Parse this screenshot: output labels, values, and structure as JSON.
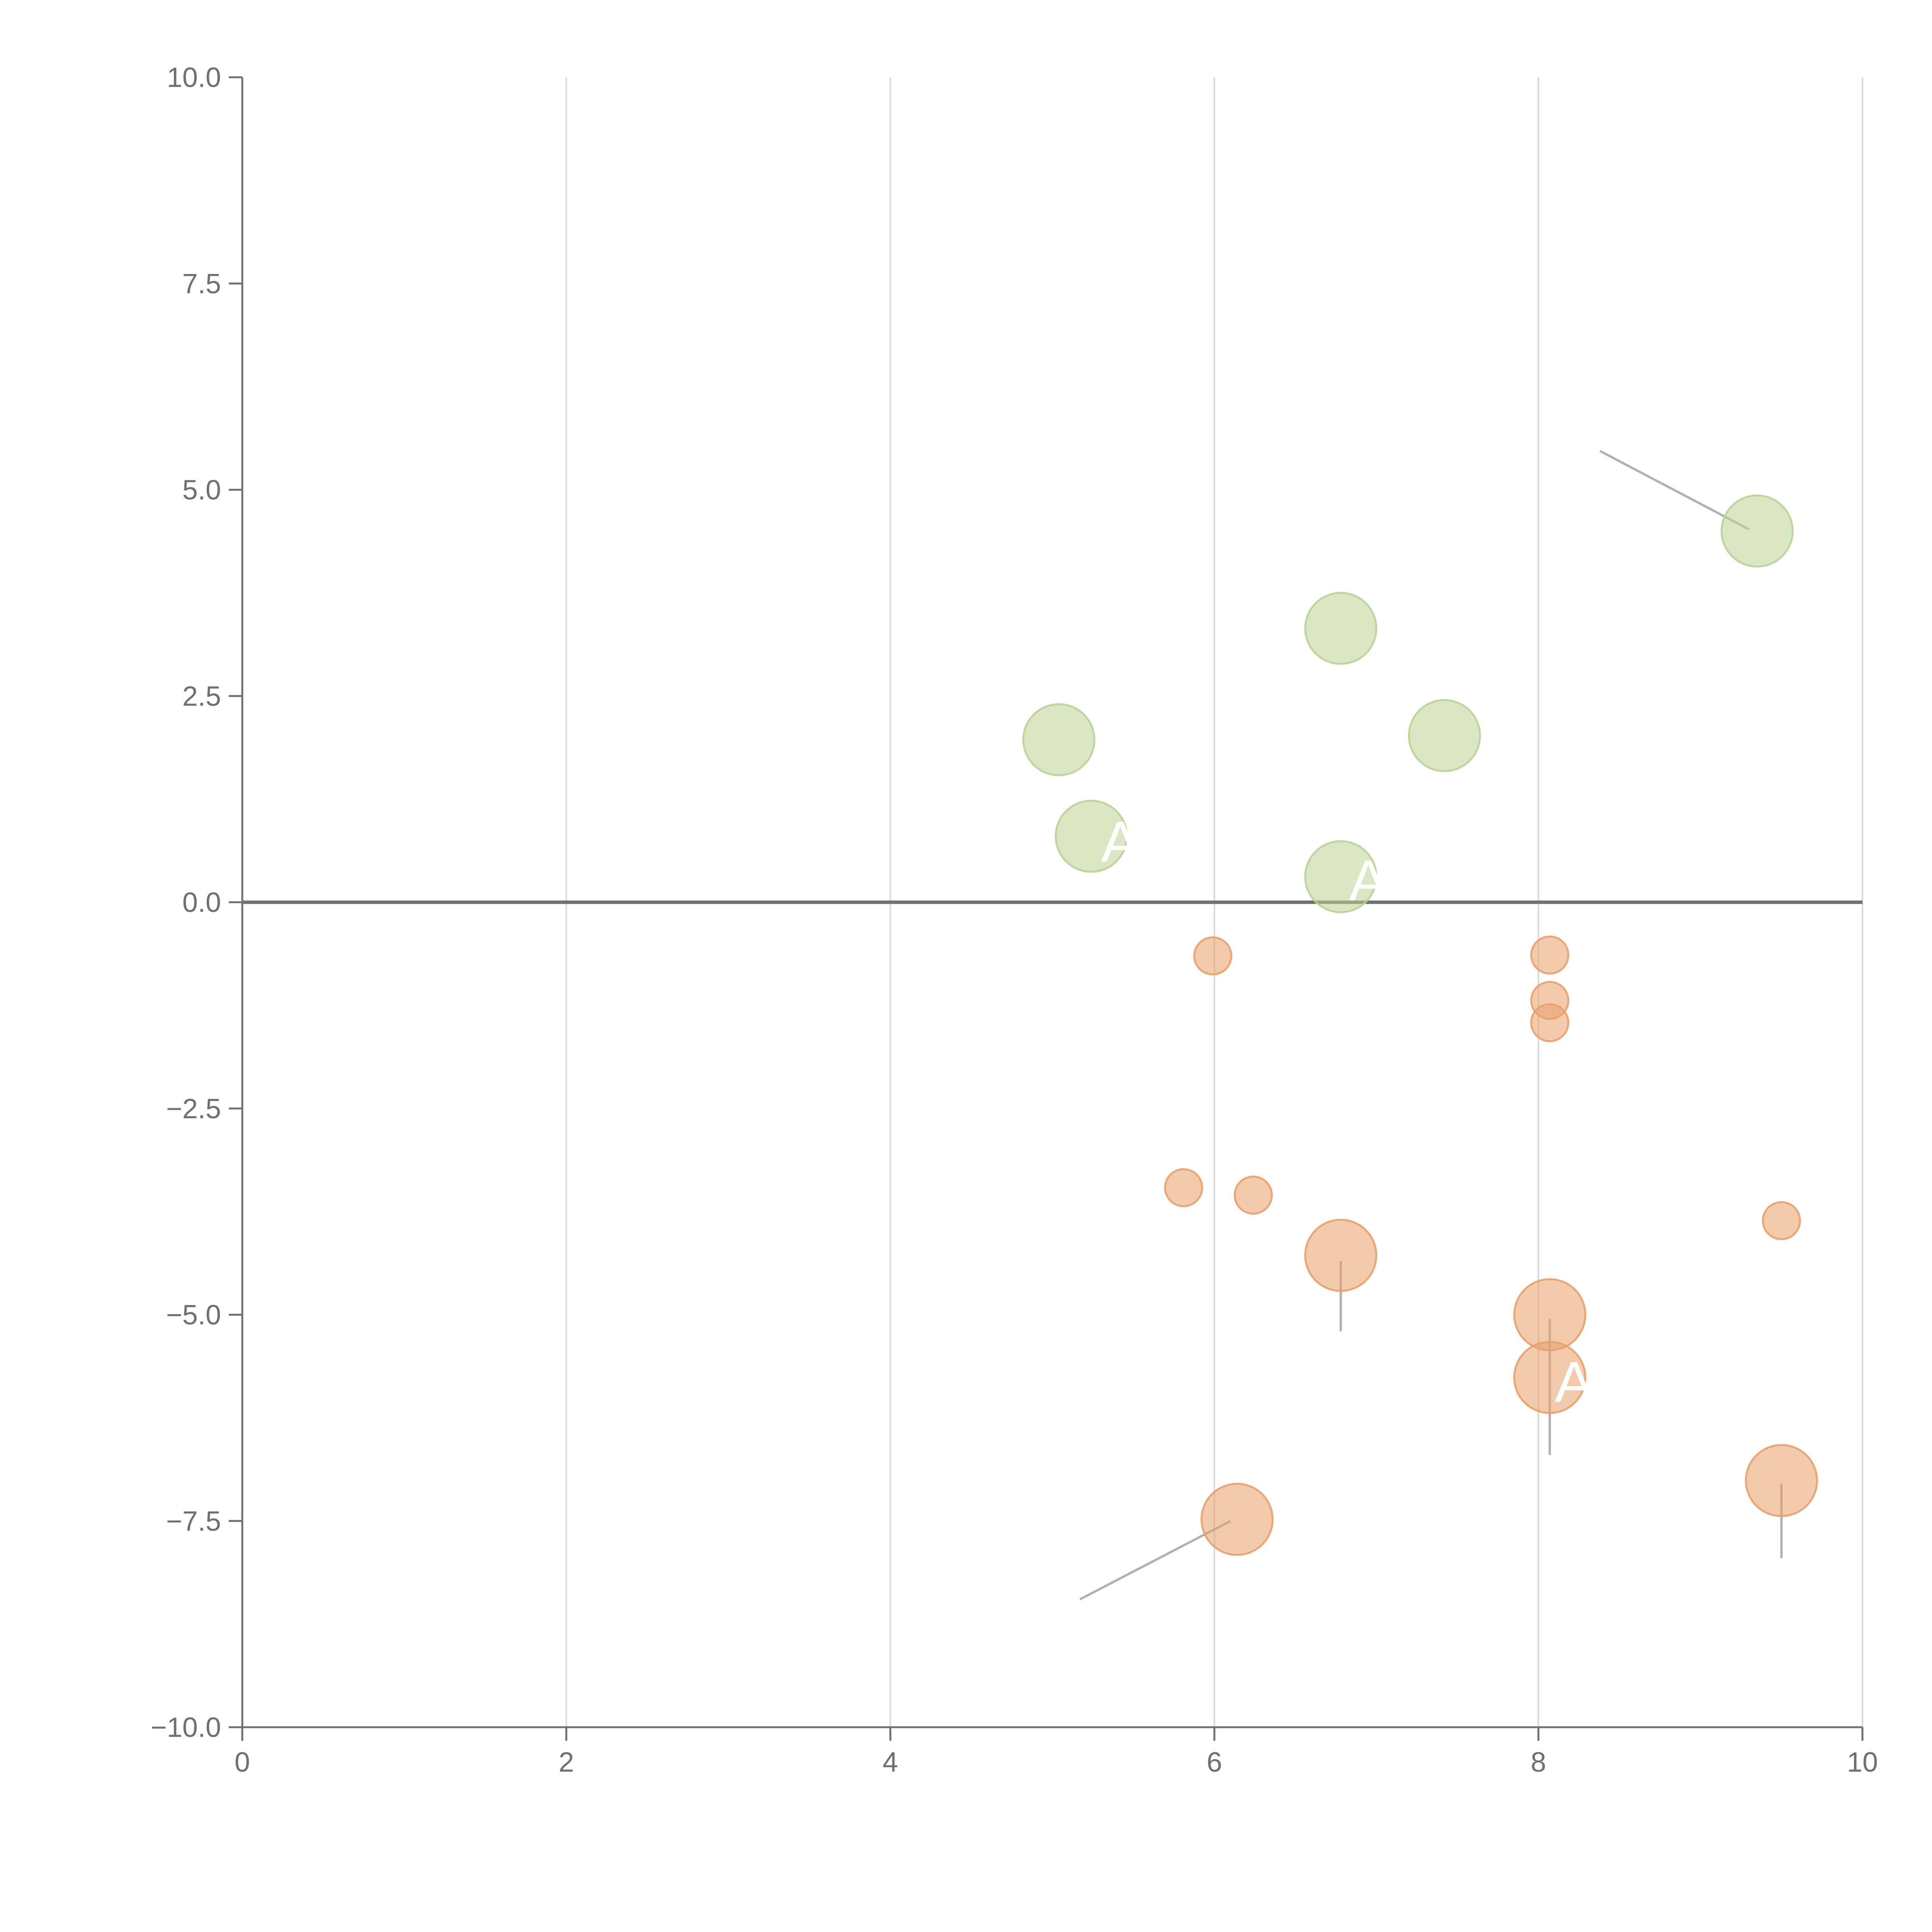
{
  "chart_data": {
    "type": "scatter",
    "title": "",
    "xlabel": "",
    "ylabel": "",
    "xlim": [
      0,
      10
    ],
    "ylim": [
      -10,
      10
    ],
    "grid": "vertical",
    "zero_line": 0,
    "x_ticks": [
      0,
      2,
      4,
      6,
      8,
      10
    ],
    "y_ticks": [
      -10,
      -7.5,
      -5,
      -2.5,
      0,
      2.5,
      5,
      7.5,
      10
    ],
    "x_tick_labels": [
      "0",
      "2",
      "4",
      "6",
      "8",
      "10"
    ],
    "y_tick_labels": [
      "−10.0",
      "−7.5",
      "−5.0",
      "−2.5",
      "0.0",
      "2.5",
      "5.0",
      "7.5",
      "10.0"
    ],
    "colors": {
      "positive": "#b9d396",
      "negative": "#e8a06a",
      "axis": "#707070",
      "grid": "#d9d9d9",
      "leader": "#9e9e9e",
      "label": "#ffffff"
    },
    "series": [
      {
        "name": "positive",
        "points": [
          {
            "x": 9.35,
            "y": 4.5,
            "size": 3
          },
          {
            "x": 6.78,
            "y": 3.32,
            "size": 3
          },
          {
            "x": 5.04,
            "y": 1.97,
            "size": 3
          },
          {
            "x": 7.42,
            "y": 2.02,
            "size": 3
          },
          {
            "x": 5.24,
            "y": 0.8,
            "size": 3
          },
          {
            "x": 6.78,
            "y": 0.31,
            "size": 3
          }
        ]
      },
      {
        "name": "negative",
        "points": [
          {
            "x": 5.99,
            "y": -0.65,
            "size": 1
          },
          {
            "x": 8.07,
            "y": -0.64,
            "size": 1
          },
          {
            "x": 8.07,
            "y": -1.19,
            "size": 1
          },
          {
            "x": 8.07,
            "y": -1.46,
            "size": 1
          },
          {
            "x": 5.81,
            "y": -3.46,
            "size": 1
          },
          {
            "x": 6.24,
            "y": -3.55,
            "size": 1
          },
          {
            "x": 9.5,
            "y": -3.86,
            "size": 1
          },
          {
            "x": 6.78,
            "y": -4.28,
            "size": 3
          },
          {
            "x": 8.07,
            "y": -5.0,
            "size": 3
          },
          {
            "x": 8.07,
            "y": -5.76,
            "size": 3
          },
          {
            "x": 9.5,
            "y": -7.01,
            "size": 3
          },
          {
            "x": 6.14,
            "y": -7.48,
            "size": 3
          }
        ]
      }
    ],
    "leader_lines": [
      {
        "x1": 9.3,
        "y1": 4.52,
        "x2": 8.38,
        "y2": 5.47
      },
      {
        "x1": 6.78,
        "y1": -4.35,
        "x2": 6.78,
        "y2": -5.2
      },
      {
        "x1": 8.07,
        "y1": -5.05,
        "x2": 8.07,
        "y2": -6.7
      },
      {
        "x1": 9.5,
        "y1": -7.05,
        "x2": 9.5,
        "y2": -7.95
      },
      {
        "x1": 6.1,
        "y1": -7.5,
        "x2": 5.17,
        "y2": -8.45
      }
    ],
    "point_labels": [
      {
        "text": "A",
        "x": 5.3,
        "y": 0.75
      },
      {
        "text": "A",
        "x": 6.83,
        "y": 0.28
      },
      {
        "text": "A",
        "x": 8.1,
        "y": -5.8
      }
    ]
  }
}
